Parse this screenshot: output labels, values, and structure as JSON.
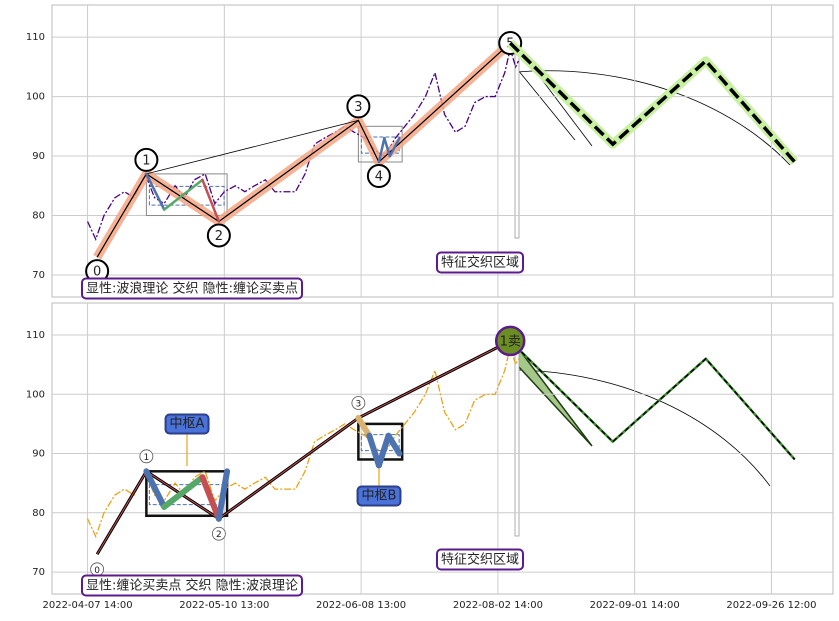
{
  "chart_data": [
    {
      "type": "wave",
      "caption": "显性:波浪理论 交织 隐性:缠论买卖点",
      "region_label": "特征交织区域",
      "xlim": [
        -26,
        545
      ],
      "xticks": [
        0,
        100,
        200,
        300,
        400,
        500
      ],
      "ylim": [
        66.3,
        115.4
      ],
      "yticks": [
        70,
        80,
        90,
        100,
        110
      ],
      "grid": true,
      "series": [
        {
          "style": "price",
          "color": "#4b0082",
          "x": [
            0,
            6,
            12,
            20,
            27,
            34,
            42,
            49,
            56,
            64,
            71,
            78,
            86,
            93,
            100,
            108,
            115,
            122,
            130,
            137,
            144,
            152,
            159,
            166,
            173,
            181,
            188,
            195,
            203,
            210,
            217,
            225,
            232,
            239,
            247,
            254,
            261,
            269,
            276,
            283,
            291,
            298,
            305,
            309,
            313,
            315
          ],
          "values": [
            79,
            76,
            80,
            83,
            84,
            83,
            87,
            83,
            82,
            85,
            83,
            86,
            87,
            82,
            84,
            85,
            84,
            85,
            86,
            84,
            84,
            84,
            87,
            92,
            93,
            94,
            95,
            94,
            93,
            91,
            90,
            93,
            95,
            97,
            100,
            104,
            97,
            94,
            95,
            99,
            100,
            100,
            104,
            108,
            105,
            106
          ]
        },
        {
          "style": "wave",
          "color": "#000000",
          "glow": "#f4a582",
          "x": [
            7,
            43,
            96,
            198,
            213,
            309
          ],
          "values": [
            73,
            87,
            79,
            96,
            89,
            109
          ],
          "labels": [
            "0",
            "1",
            "2",
            "3",
            "4",
            "5"
          ]
        },
        {
          "style": "sub",
          "colors": [
            "#4c72b0",
            "#55a868",
            "#c44e52"
          ],
          "x": [
            43,
            56,
            84,
            96
          ],
          "values": [
            87,
            81,
            86,
            79
          ]
        },
        {
          "style": "sub",
          "colors": [
            "#4c72b0",
            "#4c72b0",
            "#4c72b0"
          ],
          "x": [
            213,
            217,
            221,
            228
          ],
          "values": [
            89,
            93,
            90,
            93
          ]
        },
        {
          "style": "forecast",
          "color": "#000000",
          "glow": "#c7f0a0",
          "x": [
            309,
            384,
            452,
            517
          ],
          "values": [
            109,
            92,
            106,
            89
          ]
        }
      ],
      "zones": [
        {
          "x": [
            43,
            102
          ],
          "y": [
            80,
            87
          ]
        },
        {
          "x": [
            198,
            230
          ],
          "y": [
            89,
            95
          ]
        }
      ]
    },
    {
      "type": "wave",
      "caption": "显性:缠论买卖点 交织 隐性:波浪理论",
      "region_label": "特征交织区域",
      "pivot_labels": [
        "中枢A",
        "中枢B"
      ],
      "sell_label": "1卖",
      "xlim": [
        -26,
        545
      ],
      "xticks": [
        {
          "value": 0,
          "label": "2022-04-07 14:00"
        },
        {
          "value": 100,
          "label": "2022-05-10 13:00"
        },
        {
          "value": 200,
          "label": "2022-06-08 13:00"
        },
        {
          "value": 300,
          "label": "2022-08-02 14:00"
        },
        {
          "value": 400,
          "label": "2022-09-01 14:00"
        },
        {
          "value": 500,
          "label": "2022-09-26 12:00"
        }
      ],
      "ylim": [
        66.3,
        115.4
      ],
      "yticks": [
        70,
        80,
        90,
        100,
        110
      ],
      "grid": true,
      "series": [
        {
          "style": "price",
          "color": "#e8a317",
          "x": [
            0,
            6,
            12,
            20,
            27,
            34,
            42,
            49,
            56,
            64,
            71,
            78,
            86,
            93,
            100,
            108,
            115,
            122,
            130,
            137,
            144,
            152,
            159,
            166,
            173,
            181,
            188,
            195,
            203,
            210,
            217,
            225,
            232,
            239,
            247,
            254,
            261,
            269,
            276,
            283,
            291,
            298,
            305,
            309,
            313,
            315
          ],
          "values": [
            79,
            76,
            80,
            83,
            84,
            83,
            87,
            83,
            82,
            85,
            83,
            86,
            87,
            82,
            84,
            85,
            84,
            85,
            86,
            84,
            84,
            84,
            87,
            92,
            93,
            94,
            95,
            94,
            93,
            91,
            90,
            93,
            95,
            97,
            100,
            104,
            97,
            94,
            95,
            99,
            100,
            100,
            104,
            108,
            105,
            106
          ]
        },
        {
          "style": "wave",
          "color": "#000000",
          "glow": "#c44e52",
          "x": [
            7,
            43,
            96,
            198,
            309
          ],
          "values": [
            73,
            87,
            79,
            96,
            109
          ],
          "labels": [
            "0",
            "1",
            "2",
            "3"
          ]
        },
        {
          "style": "subthick",
          "colors": [
            "#4c72b0",
            "#55a868",
            "#c44e52",
            "#4c72b0"
          ],
          "x": [
            43,
            56,
            84,
            96,
            102
          ],
          "values": [
            87,
            81,
            86,
            79,
            87
          ]
        },
        {
          "style": "subthick",
          "colors": [
            "#d9b26f",
            "#4c72b0",
            "#4c72b0",
            "#4c72b0"
          ],
          "x": [
            198,
            206,
            213,
            220,
            228
          ],
          "values": [
            96,
            93,
            88,
            93,
            90
          ]
        },
        {
          "style": "forecast",
          "color": "#000000",
          "glow": "#3c8d2f",
          "x": [
            309,
            384,
            452,
            517
          ],
          "values": [
            109,
            92,
            106,
            89
          ]
        }
      ],
      "zones": [
        {
          "x": [
            43,
            102
          ],
          "y": [
            79.5,
            87
          ]
        },
        {
          "x": [
            198,
            230
          ],
          "y": [
            89,
            95
          ]
        }
      ]
    }
  ]
}
